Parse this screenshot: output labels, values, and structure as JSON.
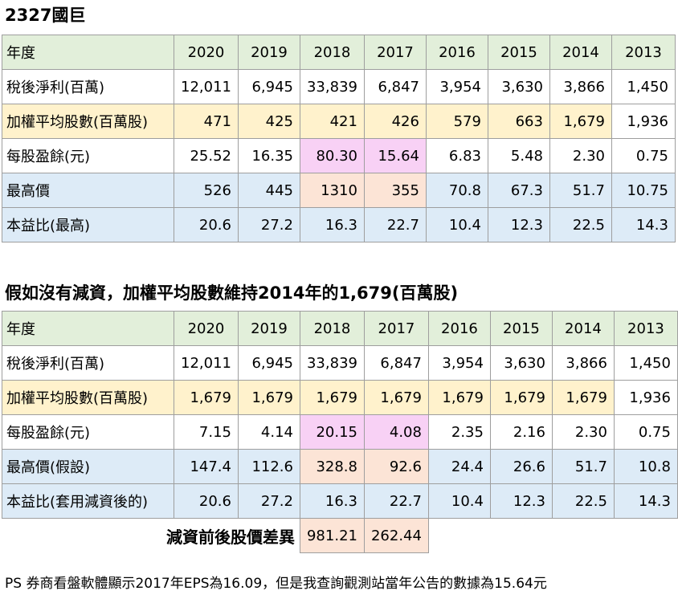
{
  "table1": {
    "title": "2327國巨",
    "years": [
      "2020",
      "2019",
      "2018",
      "2017",
      "2016",
      "2015",
      "2014",
      "2013"
    ],
    "header_label": "年度",
    "rows": [
      {
        "label": "稅後淨利(百萬)",
        "values": [
          "12,011",
          "6,945",
          "33,839",
          "6,847",
          "3,954",
          "3,630",
          "3,866",
          "1,450"
        ]
      },
      {
        "label": "加權平均股數(百萬股)",
        "values": [
          "471",
          "425",
          "421",
          "426",
          "579",
          "663",
          "1,679",
          "1,936"
        ]
      },
      {
        "label": "每股盈餘(元)",
        "values": [
          "25.52",
          "16.35",
          "80.30",
          "15.64",
          "6.83",
          "5.48",
          "2.30",
          "0.75"
        ]
      },
      {
        "label": "最高價",
        "values": [
          "526",
          "445",
          "1310",
          "355",
          "70.8",
          "67.3",
          "51.7",
          "10.75"
        ]
      },
      {
        "label": "本益比(最高)",
        "values": [
          "20.6",
          "27.2",
          "16.3",
          "22.7",
          "10.4",
          "12.3",
          "22.5",
          "14.3"
        ]
      }
    ]
  },
  "table2": {
    "title": "假如沒有減資，加權平均股數維持2014年的1,679(百萬股)",
    "years": [
      "2020",
      "2019",
      "2018",
      "2017",
      "2016",
      "2015",
      "2014",
      "2013"
    ],
    "header_label": "年度",
    "rows": [
      {
        "label": "稅後淨利(百萬)",
        "values": [
          "12,011",
          "6,945",
          "33,839",
          "6,847",
          "3,954",
          "3,630",
          "3,866",
          "1,450"
        ]
      },
      {
        "label": "加權平均股數(百萬股)",
        "values": [
          "1,679",
          "1,679",
          "1,679",
          "1,679",
          "1,679",
          "1,679",
          "1,679",
          "1,936"
        ]
      },
      {
        "label": "每股盈餘(元)",
        "values": [
          "7.15",
          "4.14",
          "20.15",
          "4.08",
          "2.35",
          "2.16",
          "2.30",
          "0.75"
        ]
      },
      {
        "label": "最高價(假設)",
        "values": [
          "147.4",
          "112.6",
          "328.8",
          "92.6",
          "24.4",
          "26.6",
          "51.7",
          "10.8"
        ]
      },
      {
        "label": "本益比(套用減資後的)",
        "values": [
          "20.6",
          "27.2",
          "16.3",
          "22.7",
          "10.4",
          "12.3",
          "22.5",
          "14.3"
        ]
      }
    ],
    "diff_label": "減資前後股價差異",
    "diff_values": [
      "981.21",
      "262.44"
    ]
  },
  "note": "PS 券商看盤軟體顯示2017年EPS為16.09，但是我查詢觀測站當年公告的數據為15.64元",
  "colors": {
    "header_green": "#e2efda",
    "shares_yellow": "#fff2cc",
    "price_blue": "#ddebf7",
    "eps_highlight_pink": "#f8d1f5",
    "price_highlight_peach": "#fce4d6"
  }
}
